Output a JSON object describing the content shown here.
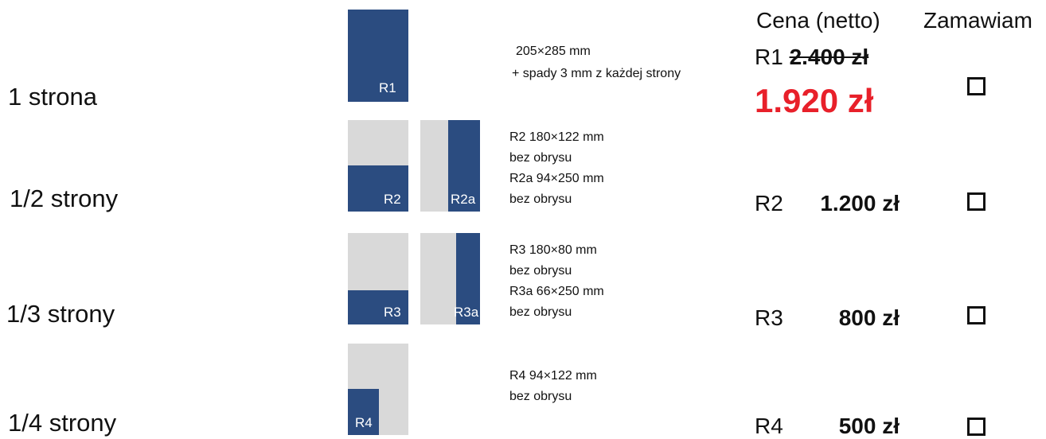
{
  "header": {
    "price": "Cena (netto)",
    "order": "Zamawiam"
  },
  "rows": [
    {
      "label": "1 strona",
      "thumbs": [
        "R1"
      ],
      "description": [
        "205×285 mm",
        "+ spady 3 mm z każdej strony"
      ],
      "price": {
        "code": "R1",
        "old": "2.400 zł",
        "value": "1.920 zł"
      }
    },
    {
      "label": "1/2 strony",
      "thumbs": [
        "R2",
        "R2a"
      ],
      "description": [
        "R2 180×122 mm",
        "bez obrysu",
        "R2a  94×250 mm",
        "bez obrysu"
      ],
      "price": {
        "code": "R2",
        "value": "1.200 zł"
      }
    },
    {
      "label": "1/3 strony",
      "thumbs": [
        "R3",
        "R3a"
      ],
      "description": [
        "R3 180×80 mm",
        "bez obrysu",
        "R3a  66×250 mm",
        "bez obrysu"
      ],
      "price": {
        "code": "R3",
        "value": "800 zł"
      }
    },
    {
      "label": "1/4 strony",
      "thumbs": [
        "R4"
      ],
      "description": [
        "R4 94×122 mm",
        "bez obrysu"
      ],
      "price": {
        "code": "R4",
        "value": "500 zł"
      }
    }
  ]
}
